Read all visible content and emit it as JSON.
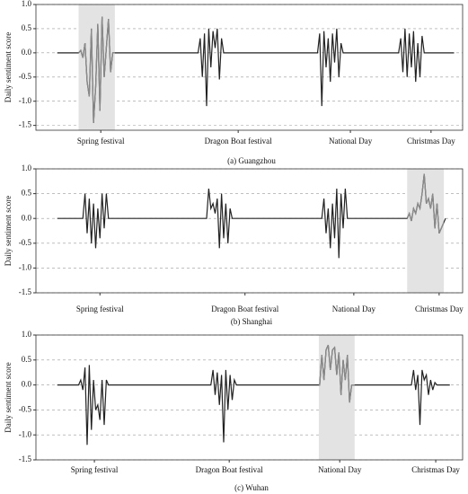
{
  "chart_data": [
    {
      "type": "line",
      "caption": "(a)   Guangzhou",
      "ylabel": "Daily sentiment score",
      "x": [
        5,
        10,
        10.5,
        11,
        11.5,
        12,
        12.5,
        13,
        13.5,
        14,
        14.5,
        15,
        15.5,
        16,
        16.5,
        17,
        17.5,
        18,
        38,
        38.5,
        39,
        39.5,
        40,
        40.5,
        41,
        41.5,
        42,
        42.5,
        43,
        43.5,
        44,
        66,
        66.5,
        67,
        67.5,
        68,
        68.5,
        69,
        69.5,
        70,
        70.5,
        71,
        71.5,
        72,
        85,
        85.5,
        86,
        86.5,
        87,
        87.5,
        88,
        88.5,
        89,
        89.5,
        90,
        90.5,
        91,
        98
      ],
      "values": [
        0,
        0,
        0.05,
        -0.1,
        0.2,
        -0.6,
        -0.9,
        0.5,
        -1.45,
        -0.7,
        0.6,
        -1.2,
        0.75,
        -0.5,
        0.1,
        0.7,
        -0.4,
        0,
        0,
        0.3,
        -0.5,
        0.4,
        -1.1,
        0.5,
        -0.3,
        0.45,
        0.1,
        0.5,
        -0.55,
        0.3,
        0,
        0,
        0.4,
        -1.1,
        0.45,
        -0.3,
        0.3,
        -0.6,
        0.4,
        -0.2,
        0.5,
        -0.5,
        0.2,
        0,
        0,
        0.3,
        -0.4,
        0.5,
        -0.5,
        0.4,
        -0.3,
        0.45,
        -0.6,
        0.2,
        -0.5,
        0.35,
        0,
        0
      ],
      "color": "#222222",
      "highlight": {
        "xlim": [
          10,
          18.5
        ],
        "color": "#e3e3e3",
        "line_color": "#8a8a8a"
      },
      "xlim": [
        0,
        100
      ],
      "ylim": [
        -1.6,
        1.0
      ],
      "xticks": [
        {
          "value": 15.2,
          "label": "Spring festival"
        },
        {
          "value": 47.4,
          "label": "Dragon Boat festival"
        },
        {
          "value": 73.7,
          "label": "National Day"
        },
        {
          "value": 92.6,
          "label": "Christmas Day"
        }
      ],
      "yticks": [
        {
          "value": 1.0,
          "label": "1.0"
        },
        {
          "value": 0.5,
          "label": "0.5"
        },
        {
          "value": 0,
          "label": "0.0"
        },
        {
          "value": -0.5,
          "label": "-0.5"
        },
        {
          "value": -1.0,
          "label": "-1.0"
        },
        {
          "value": -1.5,
          "label": "-1.5"
        }
      ],
      "grid": true
    },
    {
      "type": "line",
      "caption": "(b)   Shanghai",
      "ylabel": "Daily sentiment score",
      "x": [
        5,
        11,
        11.5,
        12,
        12.5,
        13,
        13.5,
        14,
        14.5,
        15,
        15.5,
        16,
        16.5,
        17,
        40,
        40.5,
        41,
        41.5,
        42,
        42.5,
        43,
        43.5,
        44,
        44.5,
        45,
        45.5,
        46,
        67,
        67.5,
        68,
        68.5,
        69,
        69.5,
        70,
        70.5,
        71,
        71.5,
        72,
        72.5,
        73,
        87,
        87.5,
        88,
        88.5,
        89,
        89.5,
        90,
        90.5,
        91,
        91.5,
        92,
        92.5,
        93,
        93.5,
        94,
        94.5,
        96
      ],
      "values": [
        0,
        0,
        0.5,
        -0.3,
        0.4,
        -0.5,
        0.3,
        -0.6,
        0.2,
        -0.4,
        0.5,
        -0.2,
        0.5,
        0,
        0,
        0.6,
        0.2,
        0.3,
        0.1,
        0.4,
        -0.6,
        0.5,
        -0.4,
        0.3,
        -0.5,
        0.2,
        0,
        0,
        0.4,
        -0.3,
        0.2,
        -0.6,
        0.3,
        -0.4,
        0.6,
        -0.8,
        0.5,
        -0.2,
        0.6,
        0,
        0,
        0.1,
        -0.05,
        0.2,
        0.1,
        0.3,
        0.2,
        0.5,
        0.9,
        0.3,
        0.4,
        0.2,
        0.5,
        -0.2,
        0.3,
        -0.3,
        0
      ],
      "color": "#222222",
      "highlight": {
        "xlim": [
          87,
          95.6
        ],
        "color": "#e3e3e3",
        "line_color": "#8a8a8a"
      },
      "xlim": [
        0,
        100
      ],
      "ylim": [
        -1.5,
        1.0
      ],
      "xticks": [
        {
          "value": 15,
          "label": "Spring festival"
        },
        {
          "value": 49,
          "label": "Dragon Boat festival"
        },
        {
          "value": 74.5,
          "label": "National Day"
        },
        {
          "value": 94.5,
          "label": "Christmas Day"
        }
      ],
      "yticks": [
        {
          "value": 1.0,
          "label": "1.0"
        },
        {
          "value": 0.5,
          "label": "0.5"
        },
        {
          "value": 0,
          "label": "0.0"
        },
        {
          "value": -0.5,
          "label": "-0.5"
        },
        {
          "value": -1.0,
          "label": "-1.0"
        },
        {
          "value": -1.5,
          "label": "-1.5"
        }
      ],
      "grid": true
    },
    {
      "type": "line",
      "caption": "(c)   Wuhan",
      "ylabel": "Daily sentiment score",
      "x": [
        5,
        10,
        10.5,
        11,
        11.5,
        12,
        12.5,
        13,
        13.5,
        14,
        14.5,
        15,
        15.5,
        16,
        16.5,
        17,
        41,
        41.5,
        42,
        42.5,
        43,
        43.5,
        44,
        44.5,
        45,
        45.5,
        46,
        46.5,
        47,
        66.5,
        67,
        67.5,
        68,
        68.5,
        69,
        69.5,
        70,
        70.5,
        71,
        71.5,
        72,
        72.5,
        73,
        73.5,
        74,
        88,
        88.5,
        89,
        89.5,
        90,
        90.5,
        91,
        91.5,
        92,
        92.5,
        93,
        93.5,
        94,
        97
      ],
      "values": [
        0,
        0,
        0.1,
        -0.1,
        0.35,
        -1.2,
        0.4,
        -0.9,
        0.1,
        -0.5,
        -0.4,
        -0.7,
        0.1,
        -0.8,
        0.1,
        0,
        0,
        0.3,
        -0.2,
        0.25,
        -0.4,
        0.2,
        -1.15,
        0.3,
        -0.5,
        0.2,
        -0.3,
        0.1,
        0,
        0,
        0.6,
        0.1,
        0.7,
        0.8,
        0.3,
        0.7,
        0.75,
        0.2,
        0.65,
        -0.2,
        0.5,
        0.1,
        0.6,
        -0.35,
        0,
        0,
        0.3,
        -0.1,
        0.2,
        -0.8,
        0.3,
        0.1,
        0.2,
        -0.2,
        0.1,
        -0.1,
        0.05,
        0,
        0
      ],
      "color": "#222222",
      "highlight": {
        "xlim": [
          66.3,
          74.7
        ],
        "color": "#e3e3e3",
        "line_color": "#8a8a8a"
      },
      "xlim": [
        0,
        100
      ],
      "ylim": [
        -1.5,
        1.0
      ],
      "xticks": [
        {
          "value": 13.7,
          "label": "Spring festival"
        },
        {
          "value": 45.3,
          "label": "Dragon Boat festival"
        },
        {
          "value": 71.2,
          "label": "National Day"
        },
        {
          "value": 93.7,
          "label": "Christmas Day"
        }
      ],
      "yticks": [
        {
          "value": 1.0,
          "label": "1.0"
        },
        {
          "value": 0.5,
          "label": "0.5"
        },
        {
          "value": 0,
          "label": "0.0"
        },
        {
          "value": -0.5,
          "label": "-0.5"
        },
        {
          "value": -1.0,
          "label": "-1.0"
        },
        {
          "value": -1.5,
          "label": "-1.5"
        }
      ],
      "grid": true
    }
  ]
}
